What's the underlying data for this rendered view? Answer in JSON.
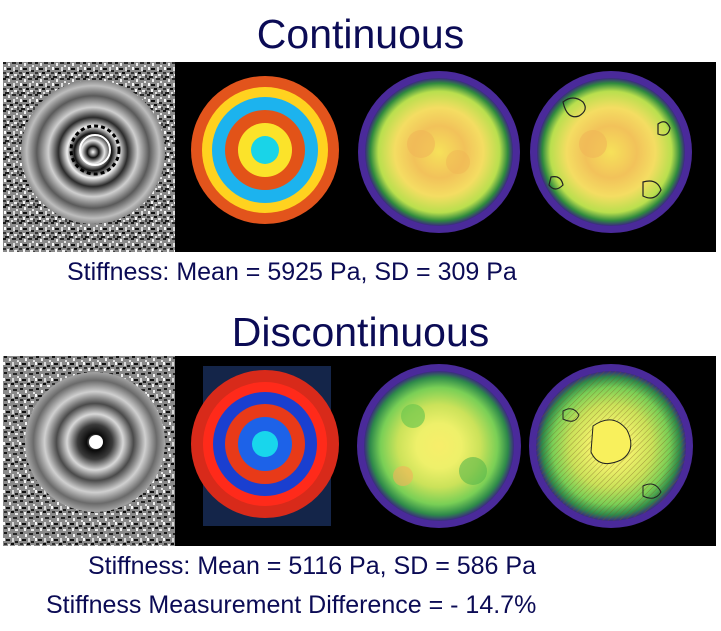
{
  "sections": [
    {
      "title": "Continuous",
      "stats": [
        "Stiffness: Mean = 5925 Pa, SD = 309 Pa"
      ],
      "panels": [
        "phase-image",
        "wave-image",
        "stiffness-map",
        "stiffness-map-contoured"
      ]
    },
    {
      "title": "Discontinuous",
      "stats": [
        "Stiffness: Mean = 5116 Pa, SD = 586 Pa",
        "Stiffness Measurement Difference = - 14.7%"
      ],
      "panels": [
        "phase-image",
        "wave-image",
        "stiffness-map",
        "stiffness-map-contoured"
      ]
    }
  ],
  "colors": {
    "text": "#0b0b55",
    "background": "#ffffff",
    "panel_background": "#000000"
  }
}
